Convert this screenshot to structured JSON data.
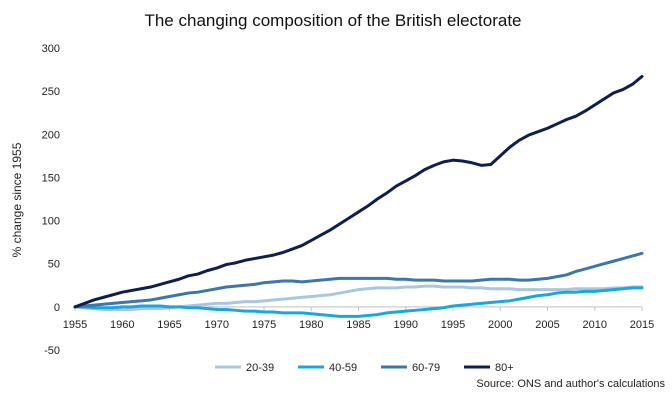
{
  "chart_data": {
    "type": "line",
    "title": "The changing composition of the British electorate",
    "xlabel": "",
    "ylabel": "% change since 1955",
    "source": "Source: ONS and author's calculations",
    "xlim": [
      1955,
      2015
    ],
    "ylim": [
      -50,
      300
    ],
    "x_ticks": [
      "1955",
      "1960",
      "1965",
      "1970",
      "1975",
      "1980",
      "1985",
      "1990",
      "1995",
      "2000",
      "2005",
      "2010",
      "2015"
    ],
    "y_ticks": [
      "-50",
      "0",
      "50",
      "100",
      "150",
      "200",
      "250",
      "300"
    ],
    "grid": "horizontal",
    "legend_position": "bottom",
    "x": [
      1955,
      1956,
      1957,
      1958,
      1959,
      1960,
      1961,
      1962,
      1963,
      1964,
      1965,
      1966,
      1967,
      1968,
      1969,
      1970,
      1971,
      1972,
      1973,
      1974,
      1975,
      1976,
      1977,
      1978,
      1979,
      1980,
      1981,
      1982,
      1983,
      1984,
      1985,
      1986,
      1987,
      1988,
      1989,
      1990,
      1991,
      1992,
      1993,
      1994,
      1995,
      1996,
      1997,
      1998,
      1999,
      2000,
      2001,
      2002,
      2003,
      2004,
      2005,
      2006,
      2007,
      2008,
      2009,
      2010,
      2011,
      2012,
      2013,
      2014,
      2015
    ],
    "series": [
      {
        "name": "20-39",
        "color": "#a9c6e3",
        "values": [
          0,
          -1,
          -2,
          -3,
          -3,
          -3,
          -3,
          -2,
          -2,
          -2,
          -1,
          0,
          1,
          2,
          3,
          4,
          4,
          5,
          6,
          6,
          7,
          8,
          9,
          10,
          11,
          12,
          13,
          14,
          16,
          18,
          20,
          21,
          22,
          22,
          22,
          23,
          23,
          24,
          24,
          23,
          23,
          23,
          22,
          22,
          21,
          21,
          21,
          20,
          20,
          20,
          20,
          20,
          20,
          21,
          21,
          21,
          21,
          22,
          22,
          23,
          23
        ]
      },
      {
        "name": "40-59",
        "color": "#1aa7de",
        "values": [
          0,
          0,
          -1,
          -1,
          -1,
          0,
          0,
          1,
          1,
          1,
          0,
          0,
          -1,
          -1,
          -2,
          -3,
          -3,
          -4,
          -5,
          -5,
          -6,
          -6,
          -7,
          -7,
          -7,
          -8,
          -9,
          -10,
          -11,
          -11,
          -11,
          -10,
          -9,
          -7,
          -6,
          -5,
          -4,
          -3,
          -2,
          -1,
          1,
          2,
          3,
          4,
          5,
          6,
          7,
          9,
          11,
          13,
          14,
          16,
          17,
          17,
          18,
          18,
          19,
          20,
          21,
          22,
          22
        ]
      },
      {
        "name": "60-79",
        "color": "#3c76ae",
        "values": [
          0,
          1,
          2,
          3,
          4,
          5,
          6,
          7,
          8,
          10,
          12,
          14,
          16,
          17,
          19,
          21,
          23,
          24,
          25,
          26,
          28,
          29,
          30,
          30,
          29,
          30,
          31,
          32,
          33,
          33,
          33,
          33,
          33,
          33,
          32,
          32,
          31,
          31,
          31,
          30,
          30,
          30,
          30,
          31,
          32,
          32,
          32,
          31,
          31,
          32,
          33,
          35,
          37,
          41,
          44,
          47,
          50,
          53,
          56,
          59,
          62
        ]
      },
      {
        "name": "80+",
        "color": "#0c1f4e",
        "values": [
          0,
          4,
          8,
          11,
          14,
          17,
          19,
          21,
          23,
          26,
          29,
          32,
          36,
          38,
          42,
          45,
          49,
          51,
          54,
          56,
          58,
          60,
          63,
          67,
          71,
          77,
          83,
          89,
          96,
          103,
          110,
          117,
          125,
          132,
          140,
          146,
          152,
          159,
          164,
          168,
          170,
          169,
          167,
          164,
          165,
          175,
          185,
          193,
          199,
          203,
          207,
          212,
          217,
          221,
          227,
          234,
          241,
          248,
          252,
          258,
          267
        ]
      }
    ]
  }
}
